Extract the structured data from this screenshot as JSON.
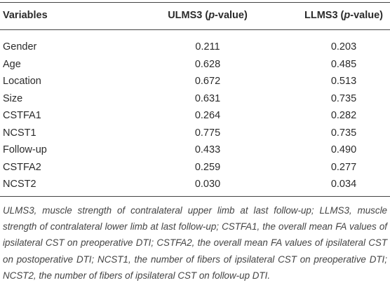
{
  "table": {
    "header": [
      {
        "text": "Variables"
      },
      {
        "before": "ULMS3 (",
        "italic": "p",
        "after": "-value)"
      },
      {
        "before": "LLMS3 (",
        "italic": "p",
        "after": "-value)"
      }
    ],
    "rows": [
      [
        "Gender",
        "0.211",
        "0.203"
      ],
      [
        "Age",
        "0.628",
        "0.485"
      ],
      [
        "Location",
        "0.672",
        "0.513"
      ],
      [
        "Size",
        "0.631",
        "0.735"
      ],
      [
        "CSTFA1",
        "0.264",
        "0.282"
      ],
      [
        "NCST1",
        "0.775",
        "0.735"
      ],
      [
        "Follow-up",
        "0.433",
        "0.490"
      ],
      [
        "CSTFA2",
        "0.259",
        "0.277"
      ],
      [
        "NCST2",
        "0.030",
        "0.034"
      ]
    ],
    "footnote": "ULMS3, muscle strength of contralateral upper limb at last follow-up; LLMS3, muscle strength of contralateral lower limb at last follow-up; CSTFA1, the overall mean FA values of ipsilateral CST on preoperative DTI; CSTFA2, the overall mean FA values of ipsilateral CST on postoperative DTI; NCST1, the number of fibers of ipsilateral CST on preoperative DTI; NCST2, the number of fibers of ipsilateral CST on follow-up DTI."
  }
}
